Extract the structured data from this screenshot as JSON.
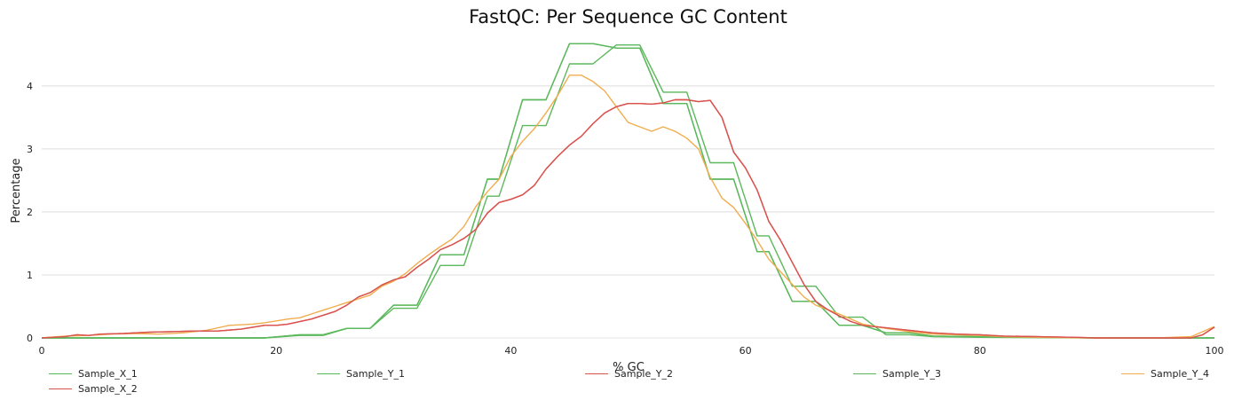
{
  "chart_data": {
    "type": "line",
    "title": "FastQC: Per Sequence GC Content",
    "xlabel": "% GC",
    "ylabel": "Percentage",
    "xlim": [
      0,
      100
    ],
    "ylim": [
      0,
      4.8
    ],
    "xticks": [
      "0",
      "20",
      "40",
      "60",
      "80",
      "100"
    ],
    "yticks": [
      "0",
      "1",
      "2",
      "3",
      "4"
    ],
    "grid": "horizontal",
    "legend_position": "bottom",
    "series": [
      {
        "name": "Sample_X_1",
        "color": "#5cb85c",
        "points": [
          [
            0,
            0
          ],
          [
            19,
            0
          ],
          [
            22,
            0.05
          ],
          [
            24,
            0.05
          ],
          [
            26,
            0.15
          ],
          [
            28,
            0.15
          ],
          [
            30,
            0.52
          ],
          [
            32,
            0.52
          ],
          [
            34,
            1.32
          ],
          [
            36,
            1.32
          ],
          [
            38,
            2.52
          ],
          [
            39,
            2.52
          ],
          [
            41,
            3.78
          ],
          [
            43,
            3.78
          ],
          [
            45,
            4.67
          ],
          [
            47,
            4.67
          ],
          [
            49,
            4.6
          ],
          [
            51,
            4.6
          ],
          [
            53,
            3.72
          ],
          [
            55,
            3.72
          ],
          [
            57,
            2.52
          ],
          [
            59,
            2.52
          ],
          [
            61,
            1.37
          ],
          [
            62,
            1.37
          ],
          [
            64,
            0.58
          ],
          [
            66,
            0.58
          ],
          [
            68,
            0.2
          ],
          [
            70,
            0.2
          ],
          [
            72,
            0.08
          ],
          [
            74,
            0.08
          ],
          [
            76,
            0.03
          ],
          [
            80,
            0.02
          ],
          [
            85,
            0.01
          ],
          [
            90,
            0
          ],
          [
            100,
            0
          ]
        ]
      },
      {
        "name": "Sample_Y_1",
        "color": "#5cb85c",
        "points": [
          [
            0,
            0
          ],
          [
            19,
            0
          ],
          [
            22,
            0.04
          ],
          [
            24,
            0.04
          ],
          [
            26,
            0.15
          ],
          [
            28,
            0.15
          ],
          [
            30,
            0.47
          ],
          [
            32,
            0.47
          ],
          [
            34,
            1.15
          ],
          [
            36,
            1.15
          ],
          [
            38,
            2.25
          ],
          [
            39,
            2.25
          ],
          [
            41,
            3.37
          ],
          [
            43,
            3.37
          ],
          [
            45,
            4.35
          ],
          [
            47,
            4.35
          ],
          [
            49,
            4.65
          ],
          [
            51,
            4.65
          ],
          [
            53,
            3.9
          ],
          [
            55,
            3.9
          ],
          [
            57,
            2.78
          ],
          [
            59,
            2.78
          ],
          [
            61,
            1.62
          ],
          [
            62,
            1.62
          ],
          [
            64,
            0.82
          ],
          [
            66,
            0.82
          ],
          [
            68,
            0.33
          ],
          [
            70,
            0.33
          ],
          [
            72,
            0.05
          ],
          [
            74,
            0.05
          ],
          [
            76,
            0.02
          ],
          [
            80,
            0.01
          ],
          [
            90,
            0
          ],
          [
            100,
            0
          ]
        ]
      },
      {
        "name": "Sample_Y_2",
        "color": "#d9534f",
        "points": [
          [
            0,
            0
          ],
          [
            2,
            0.02
          ],
          [
            3,
            0.05
          ],
          [
            4,
            0.04
          ],
          [
            5,
            0.06
          ],
          [
            7,
            0.07
          ],
          [
            9,
            0.09
          ],
          [
            11,
            0.1
          ],
          [
            13,
            0.11
          ],
          [
            15,
            0.11
          ],
          [
            17,
            0.14
          ],
          [
            19,
            0.2
          ],
          [
            20,
            0.2
          ],
          [
            21,
            0.22
          ],
          [
            23,
            0.3
          ],
          [
            24,
            0.36
          ],
          [
            25,
            0.42
          ],
          [
            26,
            0.52
          ],
          [
            27,
            0.65
          ],
          [
            28,
            0.72
          ],
          [
            29,
            0.84
          ],
          [
            30,
            0.92
          ],
          [
            31,
            0.97
          ],
          [
            32,
            1.12
          ],
          [
            33,
            1.25
          ],
          [
            34,
            1.4
          ],
          [
            35,
            1.48
          ],
          [
            36,
            1.58
          ],
          [
            37,
            1.72
          ],
          [
            38,
            1.98
          ],
          [
            39,
            2.15
          ],
          [
            40,
            2.2
          ],
          [
            41,
            2.27
          ],
          [
            42,
            2.42
          ],
          [
            43,
            2.68
          ],
          [
            44,
            2.88
          ],
          [
            45,
            3.06
          ],
          [
            46,
            3.2
          ],
          [
            47,
            3.4
          ],
          [
            48,
            3.57
          ],
          [
            49,
            3.67
          ],
          [
            50,
            3.72
          ],
          [
            51,
            3.72
          ],
          [
            52,
            3.71
          ],
          [
            53,
            3.73
          ],
          [
            54,
            3.78
          ],
          [
            55,
            3.78
          ],
          [
            56,
            3.75
          ],
          [
            57,
            3.77
          ],
          [
            58,
            3.5
          ],
          [
            59,
            2.95
          ],
          [
            60,
            2.7
          ],
          [
            61,
            2.35
          ],
          [
            62,
            1.85
          ],
          [
            63,
            1.55
          ],
          [
            64,
            1.2
          ],
          [
            65,
            0.85
          ],
          [
            66,
            0.58
          ],
          [
            67,
            0.45
          ],
          [
            68,
            0.35
          ],
          [
            69,
            0.26
          ],
          [
            70,
            0.2
          ],
          [
            72,
            0.16
          ],
          [
            74,
            0.12
          ],
          [
            76,
            0.08
          ],
          [
            78,
            0.06
          ],
          [
            80,
            0.05
          ],
          [
            82,
            0.03
          ],
          [
            85,
            0.02
          ],
          [
            88,
            0.01
          ],
          [
            90,
            0
          ],
          [
            95,
            0
          ],
          [
            98,
            0
          ],
          [
            99,
            0.05
          ],
          [
            100,
            0.17
          ]
        ]
      },
      {
        "name": "Sample_Y_3",
        "color": "#5cb85c",
        "points": [
          [
            0,
            0
          ],
          [
            19,
            0
          ],
          [
            22,
            0.05
          ],
          [
            24,
            0.05
          ],
          [
            26,
            0.15
          ],
          [
            28,
            0.15
          ],
          [
            30,
            0.52
          ],
          [
            32,
            0.52
          ],
          [
            34,
            1.32
          ],
          [
            36,
            1.32
          ],
          [
            38,
            2.52
          ],
          [
            39,
            2.52
          ],
          [
            41,
            3.78
          ],
          [
            43,
            3.78
          ],
          [
            45,
            4.67
          ],
          [
            47,
            4.67
          ],
          [
            49,
            4.6
          ],
          [
            51,
            4.6
          ],
          [
            53,
            3.72
          ],
          [
            55,
            3.72
          ],
          [
            57,
            2.52
          ],
          [
            59,
            2.52
          ],
          [
            61,
            1.37
          ],
          [
            62,
            1.37
          ],
          [
            64,
            0.58
          ],
          [
            66,
            0.58
          ],
          [
            68,
            0.2
          ],
          [
            70,
            0.2
          ],
          [
            72,
            0.08
          ],
          [
            74,
            0.08
          ],
          [
            76,
            0.03
          ],
          [
            80,
            0.02
          ],
          [
            85,
            0.01
          ],
          [
            90,
            0
          ],
          [
            100,
            0
          ]
        ]
      },
      {
        "name": "Sample_Y_4",
        "color": "#f0ad4e",
        "points": [
          [
            0,
            0
          ],
          [
            2,
            0.03
          ],
          [
            4,
            0.04
          ],
          [
            6,
            0.06
          ],
          [
            8,
            0.07
          ],
          [
            10,
            0.06
          ],
          [
            12,
            0.08
          ],
          [
            14,
            0.12
          ],
          [
            16,
            0.2
          ],
          [
            18,
            0.22
          ],
          [
            19,
            0.24
          ],
          [
            20,
            0.27
          ],
          [
            21,
            0.3
          ],
          [
            22,
            0.32
          ],
          [
            23,
            0.38
          ],
          [
            24,
            0.44
          ],
          [
            25,
            0.5
          ],
          [
            26,
            0.56
          ],
          [
            27,
            0.62
          ],
          [
            28,
            0.68
          ],
          [
            29,
            0.82
          ],
          [
            30,
            0.9
          ],
          [
            31,
            1.02
          ],
          [
            32,
            1.18
          ],
          [
            33,
            1.32
          ],
          [
            34,
            1.45
          ],
          [
            35,
            1.57
          ],
          [
            36,
            1.77
          ],
          [
            37,
            2.08
          ],
          [
            38,
            2.32
          ],
          [
            39,
            2.52
          ],
          [
            40,
            2.88
          ],
          [
            41,
            3.12
          ],
          [
            42,
            3.32
          ],
          [
            43,
            3.57
          ],
          [
            44,
            3.85
          ],
          [
            45,
            4.17
          ],
          [
            46,
            4.17
          ],
          [
            47,
            4.07
          ],
          [
            48,
            3.92
          ],
          [
            49,
            3.67
          ],
          [
            50,
            3.42
          ],
          [
            51,
            3.35
          ],
          [
            52,
            3.28
          ],
          [
            53,
            3.35
          ],
          [
            54,
            3.28
          ],
          [
            55,
            3.17
          ],
          [
            56,
            3.0
          ],
          [
            57,
            2.55
          ],
          [
            58,
            2.22
          ],
          [
            59,
            2.07
          ],
          [
            60,
            1.82
          ],
          [
            61,
            1.55
          ],
          [
            62,
            1.25
          ],
          [
            63,
            1.05
          ],
          [
            64,
            0.85
          ],
          [
            65,
            0.65
          ],
          [
            66,
            0.52
          ],
          [
            67,
            0.45
          ],
          [
            68,
            0.38
          ],
          [
            69,
            0.3
          ],
          [
            70,
            0.22
          ],
          [
            72,
            0.15
          ],
          [
            74,
            0.1
          ],
          [
            76,
            0.06
          ],
          [
            78,
            0.05
          ],
          [
            80,
            0.04
          ],
          [
            82,
            0.02
          ],
          [
            85,
            0.01
          ],
          [
            90,
            0
          ],
          [
            95,
            0
          ],
          [
            98,
            0.02
          ],
          [
            99,
            0.1
          ],
          [
            100,
            0.18
          ]
        ]
      },
      {
        "name": "Sample_X_2",
        "color": "#d9534f",
        "points": [
          [
            0,
            0
          ],
          [
            2,
            0.02
          ],
          [
            3,
            0.05
          ],
          [
            4,
            0.04
          ],
          [
            5,
            0.06
          ],
          [
            7,
            0.07
          ],
          [
            9,
            0.09
          ],
          [
            11,
            0.1
          ],
          [
            13,
            0.11
          ],
          [
            15,
            0.11
          ],
          [
            17,
            0.14
          ],
          [
            19,
            0.2
          ],
          [
            20,
            0.2
          ],
          [
            21,
            0.22
          ],
          [
            23,
            0.3
          ],
          [
            24,
            0.36
          ],
          [
            25,
            0.42
          ],
          [
            26,
            0.52
          ],
          [
            27,
            0.65
          ],
          [
            28,
            0.72
          ],
          [
            29,
            0.84
          ],
          [
            30,
            0.92
          ],
          [
            31,
            0.97
          ],
          [
            32,
            1.12
          ],
          [
            33,
            1.25
          ],
          [
            34,
            1.4
          ],
          [
            35,
            1.48
          ],
          [
            36,
            1.58
          ],
          [
            37,
            1.72
          ],
          [
            38,
            1.98
          ],
          [
            39,
            2.15
          ],
          [
            40,
            2.2
          ],
          [
            41,
            2.27
          ],
          [
            42,
            2.42
          ],
          [
            43,
            2.68
          ],
          [
            44,
            2.88
          ],
          [
            45,
            3.06
          ],
          [
            46,
            3.2
          ],
          [
            47,
            3.4
          ],
          [
            48,
            3.57
          ],
          [
            49,
            3.67
          ],
          [
            50,
            3.72
          ],
          [
            51,
            3.72
          ],
          [
            52,
            3.71
          ],
          [
            53,
            3.73
          ],
          [
            54,
            3.78
          ],
          [
            55,
            3.78
          ],
          [
            56,
            3.75
          ],
          [
            57,
            3.77
          ],
          [
            58,
            3.5
          ],
          [
            59,
            2.95
          ],
          [
            60,
            2.7
          ],
          [
            61,
            2.35
          ],
          [
            62,
            1.85
          ],
          [
            63,
            1.55
          ],
          [
            64,
            1.2
          ],
          [
            65,
            0.85
          ],
          [
            66,
            0.58
          ],
          [
            67,
            0.45
          ],
          [
            68,
            0.35
          ],
          [
            69,
            0.26
          ],
          [
            70,
            0.2
          ],
          [
            72,
            0.16
          ],
          [
            74,
            0.12
          ],
          [
            76,
            0.08
          ],
          [
            78,
            0.06
          ],
          [
            80,
            0.05
          ],
          [
            82,
            0.03
          ],
          [
            85,
            0.02
          ],
          [
            88,
            0.01
          ],
          [
            90,
            0
          ],
          [
            95,
            0
          ],
          [
            98,
            0
          ],
          [
            99,
            0.05
          ],
          [
            100,
            0.17
          ]
        ]
      }
    ]
  }
}
